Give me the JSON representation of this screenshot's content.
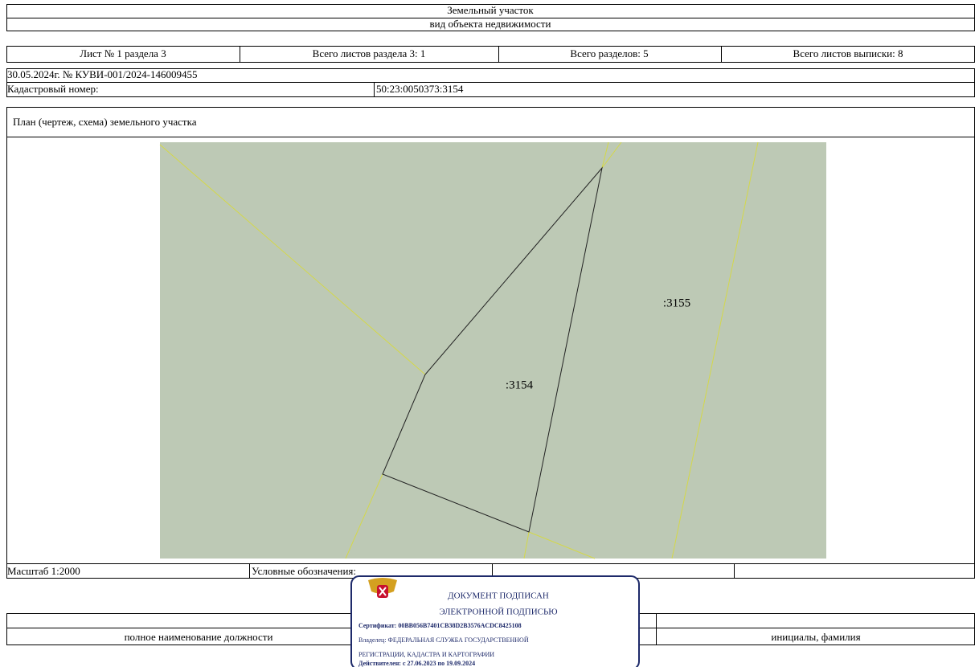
{
  "header": {
    "object_title": "Земельный участок",
    "object_caption": "вид объекта недвижимости"
  },
  "sheet_info": [
    "Лист № 1 раздела 3",
    "Всего листов раздела 3: 1",
    "Всего разделов: 5",
    "Всего листов выписки: 8"
  ],
  "statement": "30.05.2024г. № КУВИ-001/2024-146009455",
  "cadastral": {
    "label": "Кадастровый номер:",
    "value": "50:23:0050373:3154"
  },
  "plan": {
    "title": "План (чертеж, схема) земельного участка",
    "parcel_label": ":3154",
    "neighbor_label": ":3155"
  },
  "footer": {
    "scale": "Масштаб 1:2000",
    "legend": "Условные обозначения:"
  },
  "stamp": {
    "line1": "ДОКУМЕНТ ПОДПИСАН",
    "line2": "ЭЛЕКТРОННОЙ ПОДПИСЬЮ",
    "certificate": "Сертификат: 00BB056B7401CB38D2B3576ACDC8425108",
    "owner1": "Владелец: ФЕДЕРАЛЬНАЯ СЛУЖБА ГОСУДАРСТВЕННОЙ",
    "owner2": "РЕГИСТРАЦИИ, КАДАСТРА И КАРТОГРАФИИ",
    "valid": "Действителен: с 27.06.2023 по 19.09.2024"
  },
  "signature": {
    "position": "полное наименование должности",
    "name": "инициалы, фамилия"
  }
}
